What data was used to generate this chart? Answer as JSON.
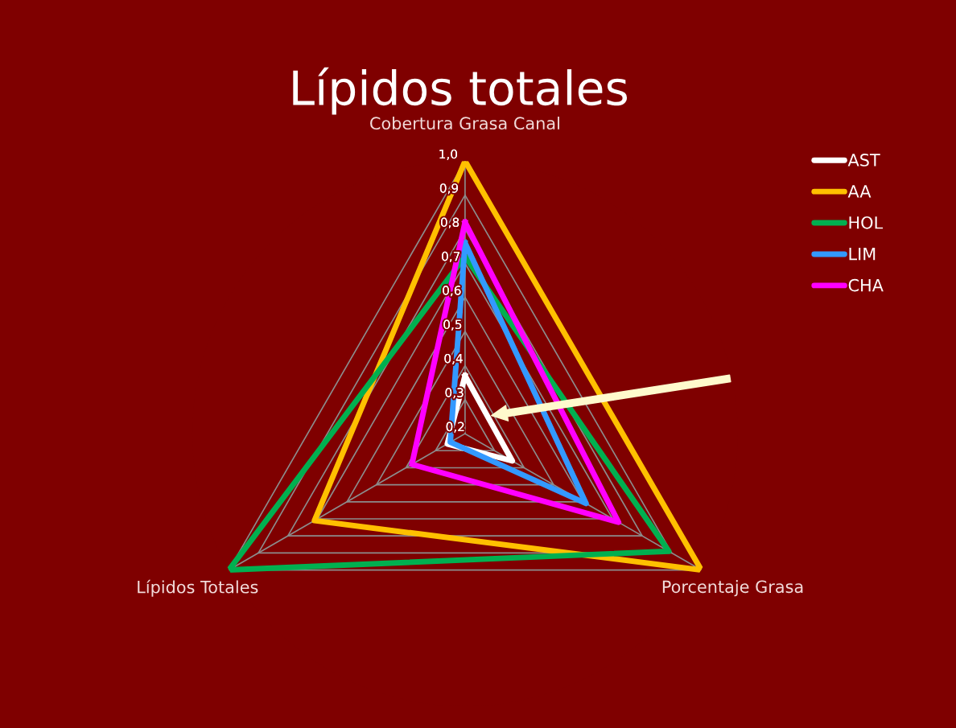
{
  "chart_data": {
    "type": "radar",
    "title": "Lípidos totales",
    "categories": [
      "Cobertura Grasa Canal",
      "Porcentaje Grasa",
      "Lípidos Totales"
    ],
    "series": [
      {
        "name": "AST",
        "color": "#ffffff",
        "values": [
          0.37,
          0.36,
          0.26
        ]
      },
      {
        "name": "AA",
        "color": "#ffc000",
        "values": [
          1.0,
          1.0,
          0.71
        ]
      },
      {
        "name": "HOL",
        "color": "#00b050",
        "values": [
          0.72,
          0.89,
          1.0
        ]
      },
      {
        "name": "LIM",
        "color": "#3399ff",
        "values": [
          0.76,
          0.61,
          0.25
        ]
      },
      {
        "name": "CHA",
        "color": "#ff00ff",
        "values": [
          0.82,
          0.72,
          0.38
        ]
      }
    ],
    "ylim": [
      0.2,
      1.0
    ],
    "yticks": [
      {
        "value": 0.2,
        "label": "0,2"
      },
      {
        "value": 0.3,
        "label": "0,3"
      },
      {
        "value": 0.4,
        "label": "0,4"
      },
      {
        "value": 0.5,
        "label": "0,5"
      },
      {
        "value": 0.6,
        "label": "0,6"
      },
      {
        "value": 0.7,
        "label": "0,7"
      },
      {
        "value": 0.8,
        "label": "0,8"
      },
      {
        "value": 0.9,
        "label": "0,9"
      },
      {
        "value": 1.0,
        "label": "1,0"
      }
    ],
    "grid": true,
    "legend": "top right",
    "marker": "none",
    "line_style": "solid"
  }
}
